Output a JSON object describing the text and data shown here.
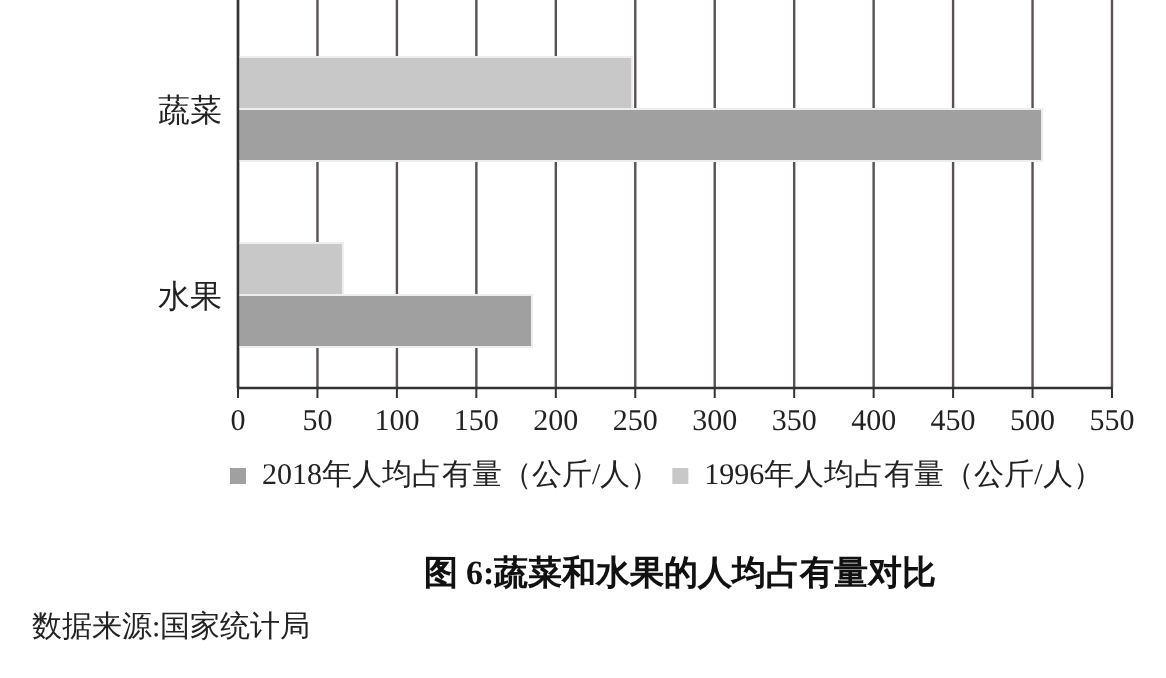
{
  "chart_data": {
    "type": "bar",
    "orientation": "horizontal",
    "title": "图 6:蔬菜和水果的人均占有量对比",
    "categories": [
      "蔬菜",
      "水果"
    ],
    "series": [
      {
        "name": "2018年人均占有量（公斤/人）",
        "color": "#a0a0a0",
        "values": [
          506,
          185
        ]
      },
      {
        "name": "1996年人均占有量（公斤/人）",
        "color": "#c8c8c8",
        "values": [
          248,
          66
        ]
      }
    ],
    "xlim": [
      0,
      550
    ],
    "xticks": [
      0,
      50,
      100,
      150,
      200,
      250,
      300,
      350,
      400,
      450,
      500,
      550
    ],
    "grid": "x",
    "legend": "bottom",
    "annotations": [
      "数据来源:国家统计局"
    ]
  }
}
